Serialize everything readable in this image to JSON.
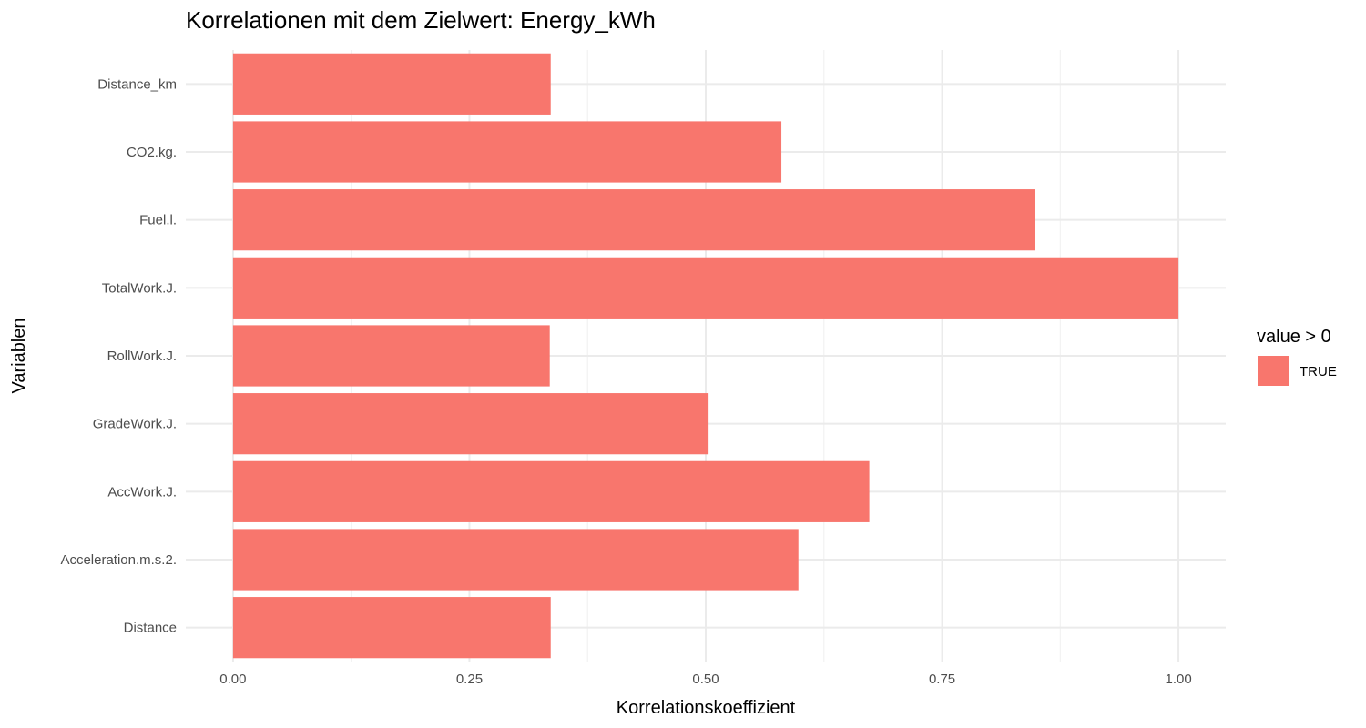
{
  "chart_data": {
    "type": "bar",
    "orientation": "horizontal",
    "title": "Korrelationen mit dem Zielwert: Energy_kWh",
    "xlabel": "Korrelationskoeffizient",
    "ylabel": "Variablen",
    "categories": [
      "Distance_km",
      "CO2.kg.",
      "Fuel.l.",
      "TotalWork.J.",
      "RollWork.J.",
      "GradeWork.J.",
      "AccWork.J.",
      "Acceleration.m.s.2.",
      "Distance"
    ],
    "values": [
      0.336,
      0.58,
      0.848,
      1.0,
      0.335,
      0.503,
      0.673,
      0.598,
      0.336
    ],
    "xlim": [
      -0.05,
      1.05
    ],
    "xticks": [
      "0.00",
      "0.25",
      "0.50",
      "0.75",
      "1.00"
    ],
    "grid": true,
    "legend": {
      "title": "value > 0",
      "position": "right",
      "entries": [
        {
          "label": "TRUE",
          "color": "#F8766D"
        }
      ]
    },
    "bar_color": "#F8766D"
  }
}
